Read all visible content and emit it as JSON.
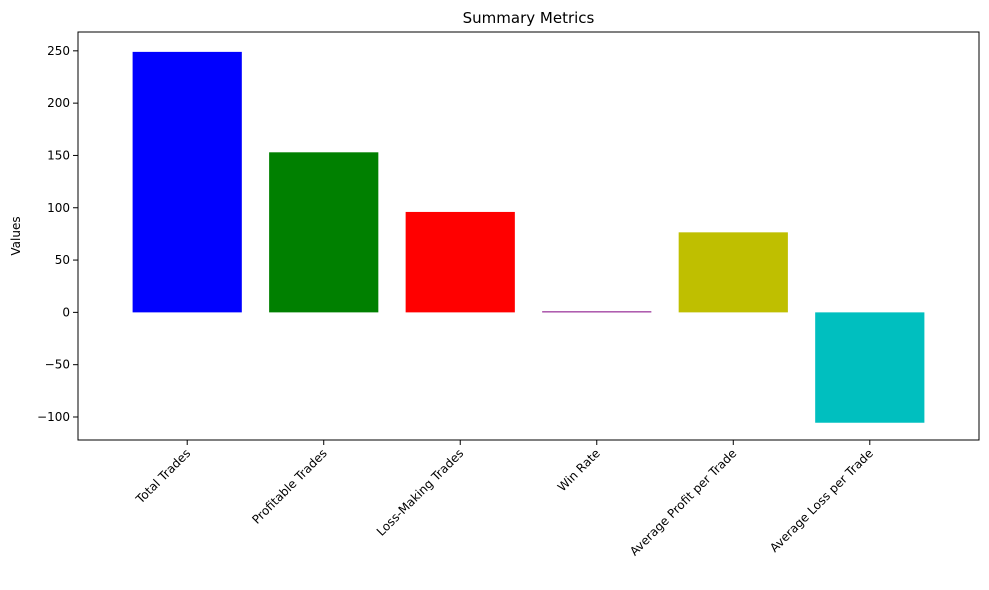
{
  "chart_data": {
    "type": "bar",
    "title": "Summary Metrics",
    "xlabel": "",
    "ylabel": "Values",
    "categories": [
      "Total Trades",
      "Profitable Trades",
      "Loss-Making Trades",
      "Win Rate",
      "Average Profit per Trade",
      "Average Loss per Trade"
    ],
    "values": [
      249,
      153,
      96,
      0.6,
      76.5,
      -105.5
    ],
    "colors": [
      "#0000ff",
      "#008000",
      "#ff0000",
      "#800080",
      "#bfbf00",
      "#00bfbf"
    ],
    "ylim": [
      -122,
      268
    ],
    "yticks": [
      -100,
      -50,
      0,
      50,
      100,
      150,
      200,
      250
    ],
    "ytick_labels": [
      "−100",
      "−50",
      "0",
      "50",
      "100",
      "150",
      "200",
      "250"
    ],
    "grid": false,
    "legend": false
  }
}
